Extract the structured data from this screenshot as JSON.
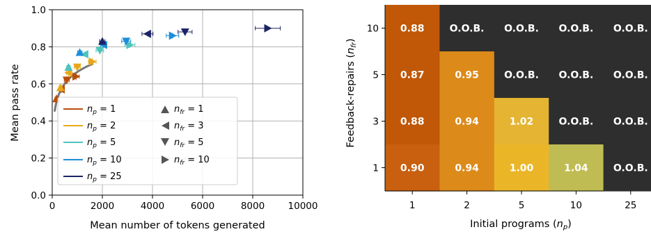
{
  "chart_data": [
    {
      "type": "scatter",
      "xlabel": "Mean number of tokens generated",
      "ylabel": "Mean pass rate",
      "xlim": [
        0,
        10000
      ],
      "ylim": [
        0.0,
        1.0
      ],
      "xticks": [
        "0",
        "2000",
        "4000",
        "6000",
        "8000",
        "10000"
      ],
      "yticks": [
        "0.0",
        "0.2",
        "0.4",
        "0.6",
        "0.8",
        "1.0"
      ],
      "grid": true,
      "legend_position": "lower-left",
      "legend_color_entries": [
        {
          "label": "n_p = 1",
          "color": "#b84e08"
        },
        {
          "label": "n_p = 2",
          "color": "#e8a818"
        },
        {
          "label": "n_p = 5",
          "color": "#4cc4bc"
        },
        {
          "label": "n_p = 10",
          "color": "#1c8ed8"
        },
        {
          "label": "n_p = 25",
          "color": "#1c2466"
        }
      ],
      "legend_marker_entries": [
        {
          "label": "n_fr = 1",
          "marker": "triangle-up"
        },
        {
          "label": "n_fr = 3",
          "marker": "triangle-left"
        },
        {
          "label": "n_fr = 5",
          "marker": "triangle-down"
        },
        {
          "label": "n_fr = 10",
          "marker": "triangle-right"
        }
      ],
      "fit_curve": {
        "color": "#777777",
        "x_range": [
          100,
          1600
        ]
      },
      "points": [
        {
          "np": 1,
          "nfr": 1,
          "x": 170,
          "y": 0.52,
          "xerr": 60,
          "yerr": 0.02
        },
        {
          "np": 1,
          "nfr": 3,
          "x": 360,
          "y": 0.57,
          "xerr": 80,
          "yerr": 0.02
        },
        {
          "np": 1,
          "nfr": 5,
          "x": 580,
          "y": 0.62,
          "xerr": 100,
          "yerr": 0.02
        },
        {
          "np": 1,
          "nfr": 10,
          "x": 950,
          "y": 0.64,
          "xerr": 130,
          "yerr": 0.02
        },
        {
          "np": 2,
          "nfr": 1,
          "x": 330,
          "y": 0.58,
          "xerr": 60,
          "yerr": 0.02
        },
        {
          "np": 2,
          "nfr": 3,
          "x": 650,
          "y": 0.66,
          "xerr": 90,
          "yerr": 0.02
        },
        {
          "np": 2,
          "nfr": 5,
          "x": 1000,
          "y": 0.69,
          "xerr": 120,
          "yerr": 0.02
        },
        {
          "np": 2,
          "nfr": 10,
          "x": 1600,
          "y": 0.72,
          "xerr": 150,
          "yerr": 0.02
        },
        {
          "np": 5,
          "nfr": 1,
          "x": 650,
          "y": 0.69,
          "xerr": 70,
          "yerr": 0.02
        },
        {
          "np": 5,
          "nfr": 3,
          "x": 1300,
          "y": 0.76,
          "xerr": 110,
          "yerr": 0.015
        },
        {
          "np": 5,
          "nfr": 5,
          "x": 1900,
          "y": 0.78,
          "xerr": 150,
          "yerr": 0.015
        },
        {
          "np": 5,
          "nfr": 10,
          "x": 3100,
          "y": 0.81,
          "xerr": 200,
          "yerr": 0.015
        },
        {
          "np": 10,
          "nfr": 1,
          "x": 1100,
          "y": 0.77,
          "xerr": 90,
          "yerr": 0.015
        },
        {
          "np": 10,
          "nfr": 3,
          "x": 2050,
          "y": 0.81,
          "xerr": 130,
          "yerr": 0.015
        },
        {
          "np": 10,
          "nfr": 5,
          "x": 2950,
          "y": 0.83,
          "xerr": 180,
          "yerr": 0.015
        },
        {
          "np": 10,
          "nfr": 10,
          "x": 4800,
          "y": 0.86,
          "xerr": 250,
          "yerr": 0.015
        },
        {
          "np": 25,
          "nfr": 1,
          "x": 2000,
          "y": 0.83,
          "xerr": 110,
          "yerr": 0.015
        },
        {
          "np": 25,
          "nfr": 3,
          "x": 3800,
          "y": 0.87,
          "xerr": 220,
          "yerr": 0.012
        },
        {
          "np": 25,
          "nfr": 5,
          "x": 5300,
          "y": 0.88,
          "xerr": 280,
          "yerr": 0.012
        },
        {
          "np": 25,
          "nfr": 10,
          "x": 8600,
          "y": 0.9,
          "xerr": 500,
          "yerr": 0.012
        }
      ]
    },
    {
      "type": "heatmap",
      "xlabel": "Initial programs (n_p)",
      "ylabel": "Feedback-repairs (n_fr)",
      "x_categories": [
        "1",
        "2",
        "5",
        "10",
        "25"
      ],
      "y_categories": [
        "10",
        "5",
        "3",
        "1"
      ],
      "cells": [
        [
          "0.88",
          "O.O.B.",
          "O.O.B.",
          "O.O.B.",
          "O.O.B."
        ],
        [
          "0.87",
          "0.95",
          "O.O.B.",
          "O.O.B.",
          "O.O.B."
        ],
        [
          "0.88",
          "0.94",
          "1.02",
          "O.O.B.",
          "O.O.B."
        ],
        [
          "0.90",
          "0.94",
          "1.00",
          "1.04",
          "O.O.B."
        ]
      ],
      "cell_colors": [
        [
          "#c05808",
          "#2e2e2e",
          "#2e2e2e",
          "#2e2e2e",
          "#2e2e2e"
        ],
        [
          "#c05808",
          "#dc8a1a",
          "#2e2e2e",
          "#2e2e2e",
          "#2e2e2e"
        ],
        [
          "#c05808",
          "#dc8a1a",
          "#e4b432",
          "#2e2e2e",
          "#2e2e2e"
        ],
        [
          "#c86010",
          "#dc8a1a",
          "#eab628",
          "#c0bc54",
          "#2e2e2e"
        ]
      ]
    }
  ]
}
